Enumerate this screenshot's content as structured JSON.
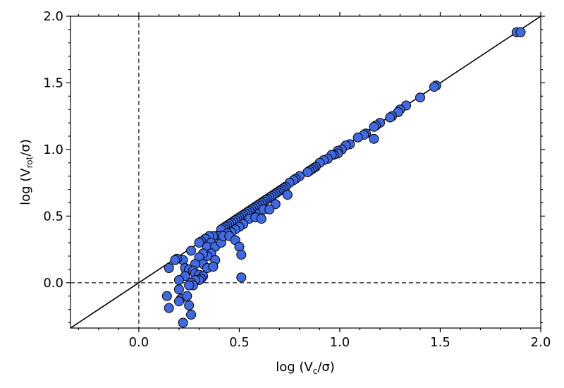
{
  "chart_data": {
    "type": "scatter",
    "title": "",
    "xlabel": "log (Vc/σ)",
    "ylabel": "log (Vrot/σ)",
    "xlim": [
      -0.34,
      2.0
    ],
    "ylim": [
      -0.34,
      2.0
    ],
    "x_ticks": [
      "0.0",
      "0.5",
      "1.0",
      "1.5",
      "2.0"
    ],
    "y_ticks": [
      "0.0",
      "0.5",
      "1.0",
      "1.5",
      "2.0"
    ],
    "grid": false,
    "reference_lines": [
      {
        "kind": "one-to-one",
        "style": "solid",
        "color": "#000000"
      },
      {
        "kind": "horizontal",
        "at": 0.0,
        "style": "dashed",
        "color": "#333333"
      },
      {
        "kind": "vertical",
        "at": 0.0,
        "style": "dashed",
        "color": "#333333"
      }
    ],
    "marker": {
      "fill": "#4169e1",
      "edge": "#000000"
    },
    "points": [
      [
        1.88,
        1.88
      ],
      [
        1.9,
        1.88
      ],
      [
        1.48,
        1.48
      ],
      [
        1.47,
        1.47
      ],
      [
        1.4,
        1.39
      ],
      [
        1.33,
        1.33
      ],
      [
        1.3,
        1.3
      ],
      [
        1.29,
        1.28
      ],
      [
        1.26,
        1.25
      ],
      [
        1.25,
        1.24
      ],
      [
        1.2,
        1.2
      ],
      [
        1.18,
        1.18
      ],
      [
        1.17,
        1.17
      ],
      [
        1.17,
        1.08
      ],
      [
        1.13,
        1.12
      ],
      [
        1.12,
        1.11
      ],
      [
        1.09,
        1.09
      ],
      [
        1.05,
        1.04
      ],
      [
        1.03,
        1.03
      ],
      [
        1.01,
        1.0
      ],
      [
        0.99,
        0.99
      ],
      [
        0.99,
        0.97
      ],
      [
        0.97,
        0.96
      ],
      [
        0.96,
        0.96
      ],
      [
        0.94,
        0.93
      ],
      [
        0.92,
        0.92
      ],
      [
        0.9,
        0.9
      ],
      [
        0.88,
        0.87
      ],
      [
        0.87,
        0.86
      ],
      [
        0.86,
        0.85
      ],
      [
        0.85,
        0.84
      ],
      [
        0.84,
        0.83
      ],
      [
        0.8,
        0.8
      ],
      [
        0.78,
        0.78
      ],
      [
        0.77,
        0.77
      ],
      [
        0.75,
        0.75
      ],
      [
        0.73,
        0.72
      ],
      [
        0.72,
        0.71
      ],
      [
        0.71,
        0.7
      ],
      [
        0.7,
        0.69
      ],
      [
        0.69,
        0.68
      ],
      [
        0.68,
        0.67
      ],
      [
        0.67,
        0.66
      ],
      [
        0.66,
        0.65
      ],
      [
        0.74,
        0.66
      ],
      [
        0.68,
        0.59
      ],
      [
        0.65,
        0.64
      ],
      [
        0.64,
        0.63
      ],
      [
        0.63,
        0.62
      ],
      [
        0.62,
        0.61
      ],
      [
        0.61,
        0.6
      ],
      [
        0.6,
        0.59
      ],
      [
        0.59,
        0.58
      ],
      [
        0.58,
        0.57
      ],
      [
        0.57,
        0.56
      ],
      [
        0.56,
        0.55
      ],
      [
        0.55,
        0.54
      ],
      [
        0.54,
        0.53
      ],
      [
        0.53,
        0.52
      ],
      [
        0.52,
        0.51
      ],
      [
        0.51,
        0.5
      ],
      [
        0.5,
        0.49
      ],
      [
        0.49,
        0.48
      ],
      [
        0.48,
        0.47
      ],
      [
        0.47,
        0.46
      ],
      [
        0.46,
        0.45
      ],
      [
        0.45,
        0.44
      ],
      [
        0.44,
        0.43
      ],
      [
        0.43,
        0.42
      ],
      [
        0.42,
        0.41
      ],
      [
        0.41,
        0.4
      ],
      [
        0.6,
        0.52
      ],
      [
        0.62,
        0.55
      ],
      [
        0.65,
        0.55
      ],
      [
        0.55,
        0.48
      ],
      [
        0.58,
        0.49
      ],
      [
        0.61,
        0.48
      ],
      [
        0.52,
        0.44
      ],
      [
        0.5,
        0.42
      ],
      [
        0.48,
        0.4
      ],
      [
        0.46,
        0.38
      ],
      [
        0.44,
        0.37
      ],
      [
        0.42,
        0.35
      ],
      [
        0.4,
        0.35
      ],
      [
        0.37,
        0.35
      ],
      [
        0.35,
        0.35
      ],
      [
        0.33,
        0.33
      ],
      [
        0.31,
        0.31
      ],
      [
        0.3,
        0.3
      ],
      [
        0.36,
        0.3
      ],
      [
        0.34,
        0.27
      ],
      [
        0.38,
        0.27
      ],
      [
        0.41,
        0.3
      ],
      [
        0.42,
        0.35
      ],
      [
        0.45,
        0.35
      ],
      [
        0.48,
        0.32
      ],
      [
        0.5,
        0.27
      ],
      [
        0.51,
        0.21
      ],
      [
        0.51,
        0.04
      ],
      [
        0.36,
        0.22
      ],
      [
        0.38,
        0.17
      ],
      [
        0.34,
        0.2
      ],
      [
        0.32,
        0.22
      ],
      [
        0.3,
        0.19
      ],
      [
        0.32,
        0.14
      ],
      [
        0.34,
        0.11
      ],
      [
        0.37,
        0.12
      ],
      [
        0.28,
        0.14
      ],
      [
        0.26,
        0.24
      ],
      [
        0.22,
        0.17
      ],
      [
        0.19,
        0.18
      ],
      [
        0.18,
        0.17
      ],
      [
        0.15,
        0.11
      ],
      [
        0.23,
        0.11
      ],
      [
        0.25,
        0.1
      ],
      [
        0.27,
        0.09
      ],
      [
        0.28,
        0.07
      ],
      [
        0.3,
        0.06
      ],
      [
        0.32,
        0.05
      ],
      [
        0.31,
        0.03
      ],
      [
        0.3,
        0.02
      ],
      [
        0.28,
        0.02
      ],
      [
        0.26,
        0.0
      ],
      [
        0.23,
        0.05
      ],
      [
        0.2,
        0.02
      ],
      [
        0.27,
        -0.02
      ],
      [
        0.25,
        -0.02
      ],
      [
        0.2,
        -0.05
      ],
      [
        0.14,
        -0.1
      ],
      [
        0.21,
        -0.12
      ],
      [
        0.2,
        -0.14
      ],
      [
        0.15,
        -0.19
      ],
      [
        0.25,
        -0.17
      ],
      [
        0.26,
        -0.24
      ],
      [
        0.22,
        -0.3
      ],
      [
        0.24,
        -0.1
      ]
    ]
  }
}
